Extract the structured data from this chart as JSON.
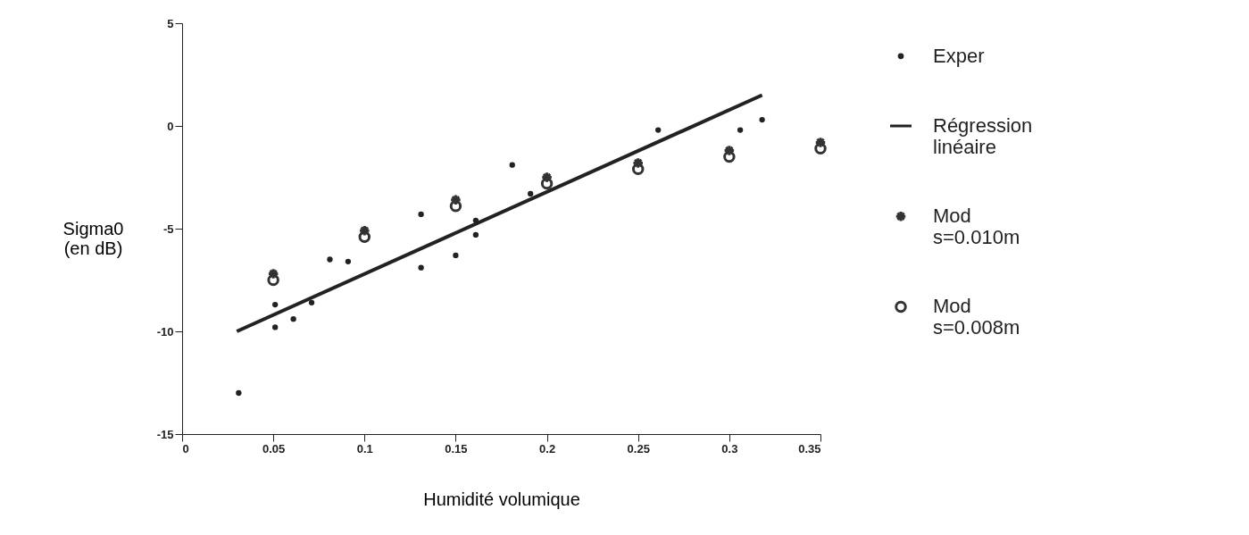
{
  "chart_data": {
    "type": "scatter",
    "xlabel": "Humidité volumique",
    "ylabel": "Sigma0 (en dB)",
    "xlim": [
      0,
      0.35
    ],
    "xticks": [
      0,
      0.05,
      0.1,
      0.15,
      0.2,
      0.25,
      0.3,
      0.35
    ],
    "ylim": [
      -15,
      5
    ],
    "yticks": [
      5,
      0,
      -5,
      -10,
      -15
    ],
    "grid": false,
    "legend": "right",
    "series": [
      {
        "name": "Exper",
        "type": "scatter",
        "marker": "circle",
        "color": "#222222",
        "x": [
          0.031,
          0.051,
          0.051,
          0.061,
          0.071,
          0.081,
          0.091,
          0.131,
          0.131,
          0.15,
          0.161,
          0.161,
          0.181,
          0.191,
          0.261,
          0.306,
          0.318
        ],
        "values": [
          -13.0,
          -8.7,
          -9.8,
          -9.4,
          -8.6,
          -6.5,
          -6.6,
          -4.3,
          -6.9,
          -6.3,
          -4.6,
          -5.3,
          -1.9,
          -3.3,
          -0.2,
          -0.2,
          0.3
        ]
      },
      {
        "name": "Régression linéaire",
        "type": "line",
        "marker": "none",
        "line_style": "solid",
        "color": "#222222",
        "x": [
          0.03,
          0.318
        ],
        "values": [
          -10.0,
          1.5
        ]
      },
      {
        "name": "Mod s=0.010m",
        "type": "scatter",
        "marker": "cross",
        "color": "#333333",
        "x": [
          0.05,
          0.1,
          0.15,
          0.2,
          0.25,
          0.3,
          0.35
        ],
        "values": [
          -7.2,
          -5.1,
          -3.6,
          -2.5,
          -1.8,
          -1.2,
          -0.8
        ]
      },
      {
        "name": "Mod s=0.008m",
        "type": "scatter",
        "marker": "circle",
        "color": "#333333",
        "x": [
          0.05,
          0.1,
          0.15,
          0.2,
          0.25,
          0.3,
          0.35
        ],
        "values": [
          -7.5,
          -5.4,
          -3.9,
          -2.8,
          -2.1,
          -1.5,
          -1.1
        ]
      }
    ]
  }
}
